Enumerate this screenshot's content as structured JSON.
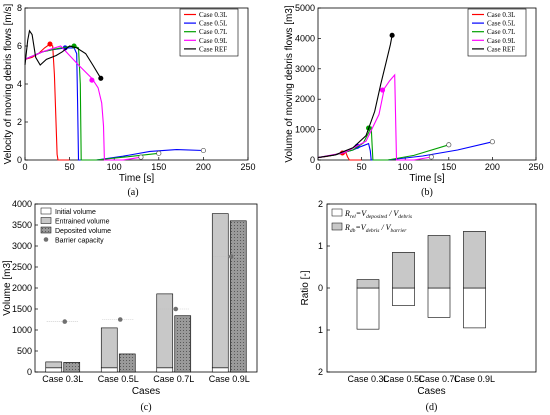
{
  "chart_data": [
    {
      "panel": "(a)",
      "type": "line",
      "xlabel": "Time [s]",
      "ylabel": "Velocity of moving debris flows [m/s]",
      "xlim": [
        0,
        250
      ],
      "ylim": [
        0,
        8
      ],
      "xticks": [
        0,
        50,
        100,
        150,
        200,
        250
      ],
      "yticks": [
        0,
        2,
        4,
        6,
        8
      ],
      "legend_position": "top-right",
      "series": [
        {
          "name": "Case 0.3L",
          "color": "#ff0000",
          "points": [
            [
              0,
              5.3
            ],
            [
              8,
              5.4
            ],
            [
              15,
              5.6
            ],
            [
              22,
              5.9
            ],
            [
              28,
              6.1
            ],
            [
              31,
              6.0
            ],
            [
              33,
              4.5
            ],
            [
              36,
              0.3
            ],
            [
              37,
              0.0
            ],
            [
              50,
              0.0
            ]
          ],
          "markers": [
            [
              28,
              6.1
            ]
          ]
        },
        {
          "name": "Case 0.5L",
          "color": "#0000ff",
          "points": [
            [
              0,
              5.3
            ],
            [
              10,
              5.5
            ],
            [
              20,
              5.7
            ],
            [
              30,
              5.8
            ],
            [
              45,
              5.9
            ],
            [
              55,
              5.9
            ],
            [
              58,
              5.6
            ],
            [
              59,
              3.0
            ],
            [
              60,
              0.0
            ],
            [
              80,
              0.0
            ],
            [
              110,
              0.2
            ],
            [
              140,
              0.45
            ],
            [
              170,
              0.55
            ],
            [
              200,
              0.5
            ]
          ],
          "markers": [
            [
              45,
              5.9
            ],
            [
              200,
              0.5
            ]
          ]
        },
        {
          "name": "Case 0.7L",
          "color": "#00a000",
          "points": [
            [
              0,
              5.3
            ],
            [
              20,
              5.7
            ],
            [
              40,
              5.9
            ],
            [
              55,
              6.0
            ],
            [
              60,
              5.9
            ],
            [
              62,
              4.0
            ],
            [
              63,
              0.0
            ],
            [
              80,
              0.0
            ],
            [
              110,
              0.15
            ],
            [
              150,
              0.35
            ]
          ],
          "markers": [
            [
              55,
              6.0
            ],
            [
              150,
              0.35
            ]
          ]
        },
        {
          "name": "Case 0.9L",
          "color": "#ff00ff",
          "points": [
            [
              0,
              5.3
            ],
            [
              20,
              5.7
            ],
            [
              40,
              6.0
            ],
            [
              60,
              5.0
            ],
            [
              75,
              4.3
            ],
            [
              82,
              3.8
            ],
            [
              86,
              3.0
            ],
            [
              88,
              1.8
            ],
            [
              89,
              0.0
            ],
            [
              110,
              0.0
            ],
            [
              130,
              0.15
            ]
          ],
          "markers": [
            [
              75,
              4.2
            ],
            [
              130,
              0.15
            ]
          ]
        },
        {
          "name": "Case REF",
          "color": "#000000",
          "points": [
            [
              0,
              5.0
            ],
            [
              3,
              6.3
            ],
            [
              5,
              6.8
            ],
            [
              8,
              6.6
            ],
            [
              12,
              5.4
            ],
            [
              17,
              5.0
            ],
            [
              24,
              5.3
            ],
            [
              35,
              5.5
            ],
            [
              42,
              5.7
            ],
            [
              50,
              6.0
            ],
            [
              58,
              5.9
            ],
            [
              68,
              5.6
            ],
            [
              76,
              5.0
            ],
            [
              85,
              4.3
            ]
          ],
          "markers": [
            [
              85,
              4.3
            ]
          ]
        }
      ]
    },
    {
      "panel": "(b)",
      "type": "line",
      "xlabel": "Time [s]",
      "ylabel": "Volume of moving debris flows [m3]",
      "xlim": [
        0,
        250
      ],
      "ylim": [
        0,
        5000
      ],
      "xticks": [
        0,
        50,
        100,
        150,
        200,
        250
      ],
      "yticks": [
        0,
        1000,
        2000,
        3000,
        4000,
        5000
      ],
      "legend_position": "top-right",
      "series": [
        {
          "name": "Case 0.3L",
          "color": "#ff0000",
          "points": [
            [
              0,
              80
            ],
            [
              10,
              120
            ],
            [
              20,
              170
            ],
            [
              28,
              230
            ],
            [
              32,
              240
            ],
            [
              34,
              100
            ],
            [
              36,
              0
            ],
            [
              50,
              0
            ]
          ],
          "markers": [
            [
              28,
              230
            ]
          ]
        },
        {
          "name": "Case 0.5L",
          "color": "#0000ff",
          "points": [
            [
              0,
              80
            ],
            [
              20,
              170
            ],
            [
              40,
              330
            ],
            [
              50,
              450
            ],
            [
              58,
              540
            ],
            [
              60,
              300
            ],
            [
              61,
              0
            ],
            [
              80,
              0
            ],
            [
              120,
              130
            ],
            [
              160,
              330
            ],
            [
              200,
              600
            ]
          ],
          "markers": [
            [
              45,
              450
            ],
            [
              200,
              600
            ]
          ]
        },
        {
          "name": "Case 0.7L",
          "color": "#00a000",
          "points": [
            [
              0,
              80
            ],
            [
              20,
              170
            ],
            [
              40,
              330
            ],
            [
              52,
              560
            ],
            [
              58,
              900
            ],
            [
              61,
              1100
            ],
            [
              62,
              500
            ],
            [
              63,
              0
            ],
            [
              80,
              0
            ],
            [
              110,
              150
            ],
            [
              150,
              500
            ]
          ],
          "markers": [
            [
              58,
              1050
            ],
            [
              150,
              500
            ]
          ]
        },
        {
          "name": "Case 0.9L",
          "color": "#ff00ff",
          "points": [
            [
              0,
              80
            ],
            [
              30,
              240
            ],
            [
              55,
              620
            ],
            [
              70,
              1500
            ],
            [
              76,
              2350
            ],
            [
              82,
              2600
            ],
            [
              88,
              2800
            ],
            [
              89,
              1400
            ],
            [
              90,
              0
            ],
            [
              110,
              0
            ],
            [
              130,
              100
            ]
          ],
          "markers": [
            [
              74,
              2300
            ],
            [
              130,
              100
            ]
          ]
        },
        {
          "name": "Case REF",
          "color": "#000000",
          "points": [
            [
              0,
              80
            ],
            [
              20,
              170
            ],
            [
              40,
              400
            ],
            [
              55,
              800
            ],
            [
              65,
              1600
            ],
            [
              72,
              2500
            ],
            [
              78,
              3200
            ],
            [
              83,
              3800
            ],
            [
              85,
              4100
            ]
          ],
          "markers": [
            [
              85,
              4100
            ]
          ]
        }
      ]
    },
    {
      "panel": "(c)",
      "type": "bar",
      "xlabel": "Cases",
      "ylabel": "Volume [m3]",
      "ylim": [
        0,
        4000
      ],
      "yticks": [
        0,
        500,
        1000,
        1500,
        2000,
        2500,
        3000,
        3500,
        4000
      ],
      "categories": [
        "Case 0.3L",
        "Case 0.5L",
        "Case 0.7L",
        "Case 0.9L"
      ],
      "legend_position": "top-left",
      "series": [
        {
          "name": "Initial volume",
          "values": [
            100,
            100,
            100,
            100
          ]
        },
        {
          "name": "Entrained volume",
          "values": [
            140,
            950,
            1760,
            3670
          ]
        },
        {
          "name": "Deposited volume",
          "values": [
            230,
            430,
            1340,
            3600
          ]
        },
        {
          "name": "Barrier capacity",
          "values": [
            1200,
            1250,
            1500,
            2750
          ]
        }
      ]
    },
    {
      "panel": "(d)",
      "type": "bar",
      "xlabel": "Cases",
      "ylabel": "Ratio [-]",
      "ylim": [
        -2,
        2
      ],
      "yticks": [
        2,
        1,
        0,
        1,
        2
      ],
      "categories": [
        "Case 0.3L",
        "Case 0.5L",
        "Case 0.7L",
        "Case 0.9L"
      ],
      "legend_position": "top-left",
      "series": [
        {
          "name": "Rrel = Vdeposited / Vdebris",
          "values": [
            0.98,
            0.42,
            0.7,
            0.95
          ]
        },
        {
          "name": "Rdb = Vdebris / Vbarrier",
          "values": [
            0.2,
            0.85,
            1.25,
            1.35
          ]
        }
      ]
    }
  ],
  "legend_d": {
    "r1_main": "R",
    "r1_sub": "rel",
    "r1_eq": "=V",
    "r1_sub2": "deposited",
    "r1_div": " / V",
    "r1_sub3": "debris",
    "r2_main": "R",
    "r2_sub": "db",
    "r2_eq": "=V",
    "r2_sub2": "debris",
    "r2_div": " / V",
    "r2_sub3": "barrier"
  }
}
